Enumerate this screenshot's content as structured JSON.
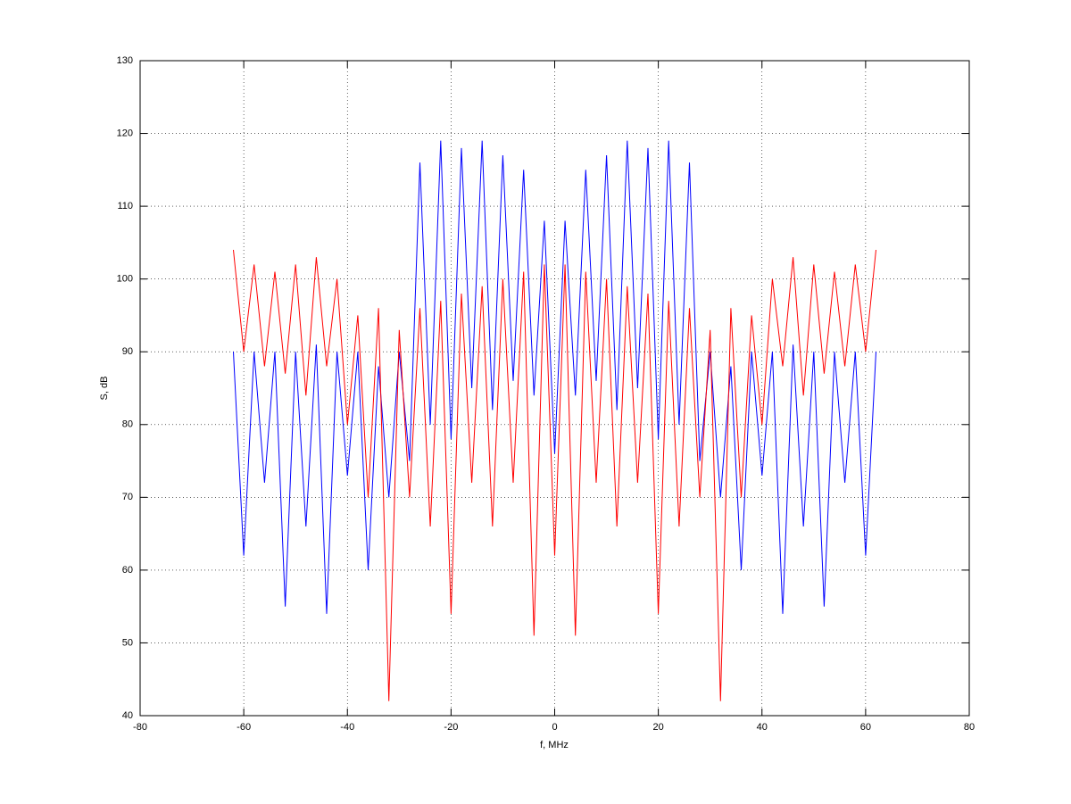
{
  "chart_data": {
    "type": "line",
    "xlabel": "f, MHz",
    "ylabel": "S, dB",
    "x": [
      -62,
      -60,
      -58,
      -56,
      -54,
      -52,
      -50,
      -48,
      -46,
      -44,
      -42,
      -40,
      -38,
      -36,
      -34,
      -32,
      -30,
      -28,
      -26,
      -24,
      -22,
      -20,
      -18,
      -16,
      -14,
      -12,
      -10,
      -8,
      -6,
      -4,
      -2,
      0,
      2,
      4,
      6,
      8,
      10,
      12,
      14,
      16,
      18,
      20,
      22,
      24,
      26,
      28,
      30,
      32,
      34,
      36,
      38,
      40,
      42,
      44,
      46,
      48,
      50,
      52,
      54,
      56,
      58,
      60,
      62
    ],
    "series": [
      {
        "color": "#0000ff",
        "values": [
          90,
          62,
          90,
          72,
          90,
          55,
          90,
          66,
          91,
          54,
          90,
          73,
          90,
          60,
          88,
          70,
          90,
          75,
          116,
          80,
          119,
          78,
          118,
          85,
          119,
          82,
          117,
          86,
          115,
          84,
          108,
          76,
          108,
          84,
          115,
          86,
          117,
          82,
          119,
          85,
          118,
          78,
          119,
          80,
          116,
          75,
          90,
          70,
          88,
          60,
          90,
          73,
          90,
          54,
          91,
          66,
          90,
          55,
          90,
          72,
          90,
          62,
          90
        ]
      },
      {
        "color": "#ff0000",
        "values": [
          104,
          90,
          102,
          88,
          101,
          87,
          102,
          84,
          103,
          88,
          100,
          80,
          95,
          70,
          96,
          42,
          93,
          70,
          96,
          66,
          97,
          54,
          98,
          72,
          99,
          66,
          100,
          72,
          101,
          51,
          102,
          62,
          102,
          51,
          101,
          72,
          100,
          66,
          99,
          72,
          98,
          54,
          97,
          66,
          96,
          70,
          93,
          42,
          96,
          70,
          95,
          80,
          100,
          88,
          103,
          84,
          102,
          87,
          101,
          88,
          102,
          90,
          104
        ]
      }
    ],
    "xlim": [
      -80,
      80
    ],
    "xticks": [
      -80,
      -60,
      -40,
      -20,
      0,
      20,
      40,
      60,
      80
    ],
    "ylim": [
      40,
      130
    ],
    "yticks": [
      40,
      50,
      60,
      70,
      80,
      90,
      100,
      110,
      120,
      130
    ],
    "grid": true
  }
}
